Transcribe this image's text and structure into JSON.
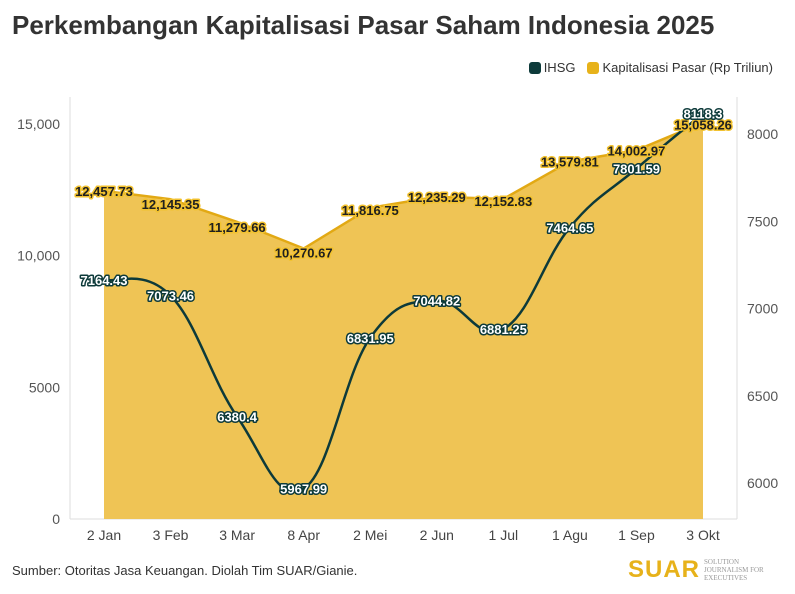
{
  "title": "Perkembangan Kapitalisasi Pasar Saham Indonesia 2025",
  "legend": [
    {
      "label": "IHSG",
      "color": "#0d3a3a"
    },
    {
      "label": "Kapitalisasi Pasar (Rp Triliun)",
      "color": "#e7b21a"
    }
  ],
  "source": "Sumber: Otoritas Jasa Keuangan. Diolah Tim SUAR/Gianie.",
  "logo": {
    "word": "SUAR",
    "tagline": "SOLUTION JOURNALISM FOR EXECUTIVES"
  },
  "colors": {
    "area_fill": "#efc455",
    "area_line": "#e2a914",
    "ihsg_line": "#0d3a3a",
    "ihsg_label_bg": "#0d3a3a"
  },
  "chart_data": {
    "type": "area",
    "categories": [
      "2 Jan",
      "3 Feb",
      "3 Mar",
      "8 Apr",
      "2 Mei",
      "2 Jun",
      "1 Jul",
      "1 Agu",
      "1 Sep",
      "3 Okt"
    ],
    "series": [
      {
        "name": "Kapitalisasi Pasar (Rp Triliun)",
        "axis": "left",
        "values": [
          12457.73,
          12145.35,
          11279.66,
          10270.67,
          11816.75,
          12235.29,
          12152.83,
          13579.81,
          14002.97,
          15058.26
        ],
        "labels": [
          "12,457.73",
          "12,145.35",
          "11,279.66",
          "10,270.67",
          "11,816.75",
          "12,235.29",
          "12,152.83",
          "13,579.81",
          "14,002.97",
          "15,058.26"
        ]
      },
      {
        "name": "IHSG",
        "axis": "right",
        "values": [
          7164.43,
          7073.46,
          6380.4,
          5967.99,
          6831.95,
          7044.82,
          6881.25,
          7464.65,
          7801.59,
          8118.3
        ],
        "labels": [
          "7164.43",
          "7073.46",
          "6380.4",
          "5967.99",
          "6831.95",
          "7044.82",
          "6881.25",
          "7464.65",
          "7801.59",
          "8118.3"
        ]
      }
    ],
    "y_left": {
      "ticks": [
        0,
        5000,
        10000,
        15000
      ],
      "tick_labels": [
        "0",
        "5000",
        "10,000",
        "15,000"
      ],
      "range": [
        0,
        15000
      ]
    },
    "y_right": {
      "ticks": [
        6000,
        6500,
        7000,
        7500,
        8000
      ],
      "tick_labels": [
        "6000",
        "6500",
        "7000",
        "7500",
        "8000"
      ],
      "range": [
        6000,
        8000
      ]
    },
    "grid": false,
    "legend_position": "top-right"
  }
}
